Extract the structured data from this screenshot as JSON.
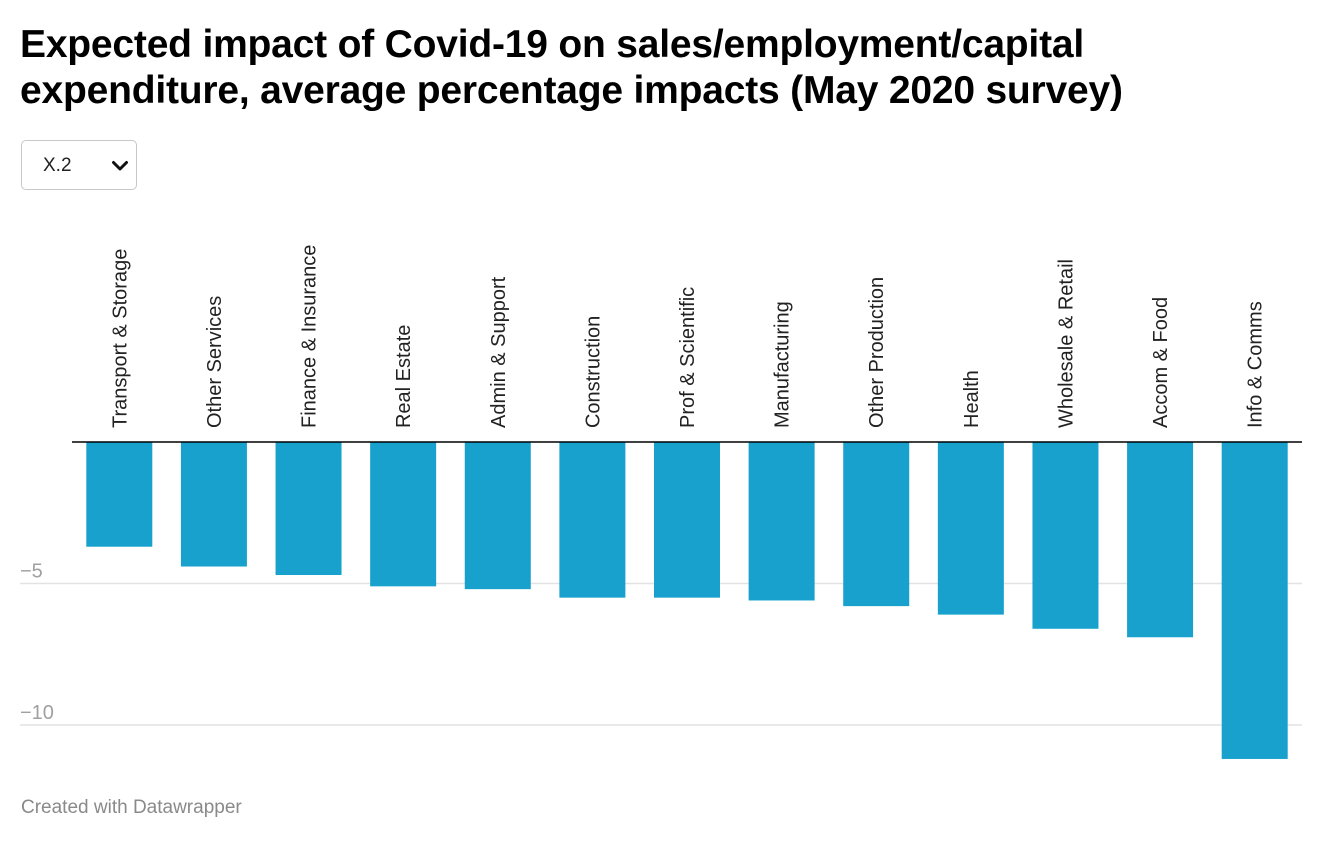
{
  "title": "Expected impact of Covid-19 on sales/employment/capital expenditure,  average percentage impacts (May 2020 survey)",
  "dropdown": {
    "selected": "X.2",
    "icon": "chevron-down-icon"
  },
  "footer": "Created with Datawrapper",
  "colors": {
    "bar": "#18a1cd",
    "gridline": "#e2e2e2",
    "baseline": "#000000",
    "tick_label": "#a0a0a0",
    "category_label": "#222222"
  },
  "chart_data": {
    "type": "bar",
    "orientation": "vertical",
    "title": "Expected impact of Covid-19 on sales/employment/capital expenditure,  average percentage impacts (May 2020 survey)",
    "xlabel": "",
    "ylabel": "",
    "categories": [
      "Transport & Storage",
      "Other Services",
      "Finance & Insurance",
      "Real Estate",
      "Admin & Support",
      "Construction",
      "Prof & Scientific",
      "Manufacturing",
      "Other Production",
      "Health",
      "Wholesale & Retail",
      "Accom & Food",
      "Info & Comms"
    ],
    "values": [
      -3.7,
      -4.4,
      -4.7,
      -5.1,
      -5.2,
      -5.5,
      -5.5,
      -5.6,
      -5.8,
      -6.1,
      -6.6,
      -6.9,
      -11.2
    ],
    "yticks": [
      -5,
      -10
    ],
    "ytick_labels": [
      "−5",
      "−10"
    ],
    "ylim": [
      -11.2,
      0
    ],
    "grid": true,
    "category_labels_rotated": true
  }
}
